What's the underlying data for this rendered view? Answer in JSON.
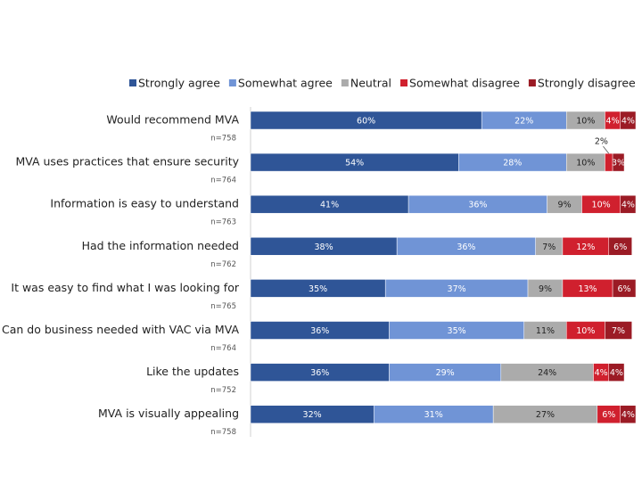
{
  "chart_data": {
    "type": "stacked-bar-horizontal",
    "categories": [
      "Would recommend MVA",
      "MVA uses practices that ensure security",
      "Information is easy to understand",
      "Had the information needed",
      "It was easy to find what I was looking for",
      "Can do business needed with VAC via MVA",
      "Like the updates",
      "MVA is visually appealing"
    ],
    "sample_sizes": [
      "n=758",
      "n=764",
      "n=763",
      "n=762",
      "n=765",
      "n=764",
      "n=752",
      "n=758"
    ],
    "series": [
      {
        "name": "Strongly agree",
        "color": "#2f5597",
        "values": [
          60,
          54,
          41,
          38,
          35,
          36,
          36,
          32
        ],
        "value_labels": [
          "60%",
          "54%",
          "41%",
          "38%",
          "35%",
          "36%",
          "36%",
          "32%"
        ]
      },
      {
        "name": "Somewhat agree",
        "color": "#7094d6",
        "values": [
          22,
          28,
          36,
          36,
          37,
          35,
          29,
          31
        ],
        "value_labels": [
          "22%",
          "28%",
          "36%",
          "36%",
          "37%",
          "35%",
          "29%",
          "31%"
        ]
      },
      {
        "name": "Neutral",
        "color": "#ababab",
        "values": [
          10,
          10,
          9,
          7,
          9,
          11,
          24,
          27
        ],
        "value_labels": [
          "10%",
          "10%",
          "9%",
          "7%",
          "9%",
          "11%",
          "24%",
          "27%"
        ]
      },
      {
        "name": "Somewhat disagree",
        "color": "#d0202e",
        "values": [
          4,
          2,
          10,
          12,
          13,
          10,
          4,
          6
        ],
        "value_labels": [
          "4%",
          "2%",
          "10%",
          "12%",
          "13%",
          "10%",
          "4%",
          "6%"
        ]
      },
      {
        "name": "Strongly disagree",
        "color": "#9b1b25",
        "values": [
          4,
          3,
          4,
          6,
          6,
          7,
          4,
          4
        ],
        "value_labels": [
          "4%",
          "3%",
          "4%",
          "6%",
          "6%",
          "7%",
          "4%",
          "4%"
        ]
      }
    ]
  }
}
